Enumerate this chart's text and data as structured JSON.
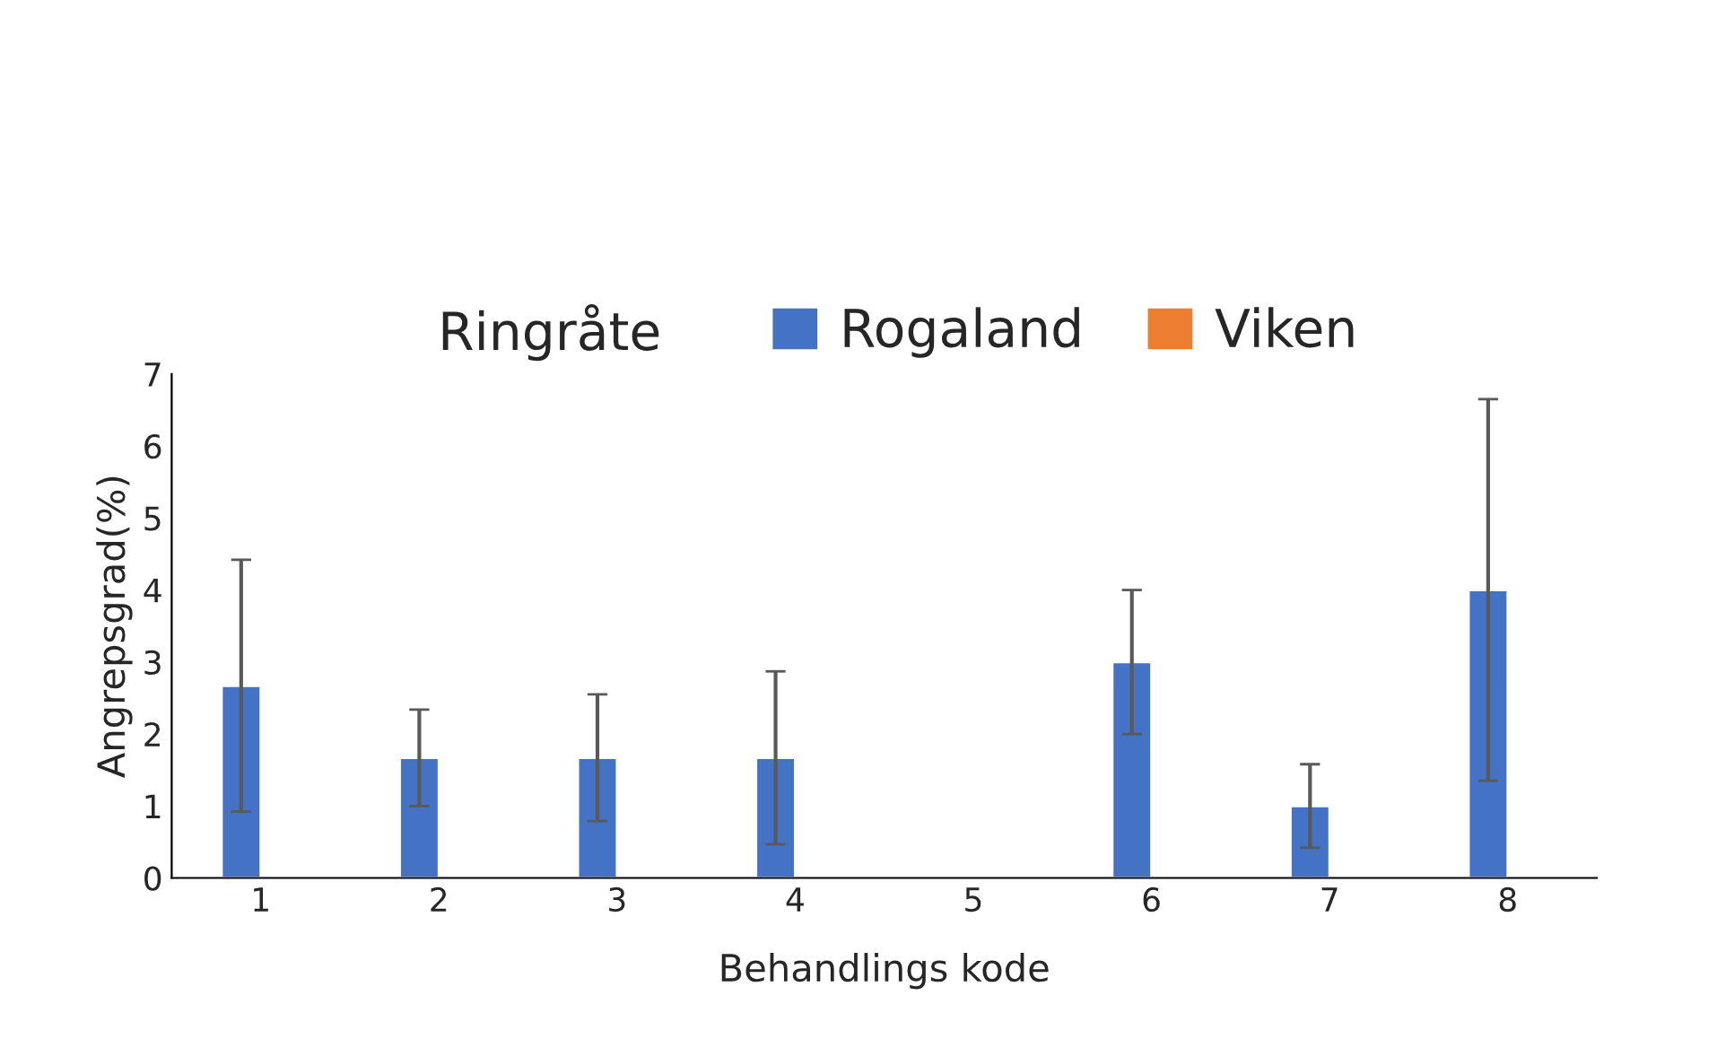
{
  "chart_data": {
    "type": "bar",
    "title": "Ringråte",
    "xlabel": "Behandlings kode",
    "ylabel": "Angrepsgrad(%)",
    "categories": [
      "1",
      "2",
      "3",
      "4",
      "5",
      "6",
      "7",
      "8"
    ],
    "series": [
      {
        "name": "Rogaland",
        "color": "#4472c4",
        "values": [
          2.67,
          1.67,
          1.67,
          1.67,
          null,
          3.0,
          1.0,
          4.0
        ],
        "errors": [
          1.75,
          0.67,
          0.88,
          1.2,
          null,
          1.0,
          0.58,
          2.65
        ]
      },
      {
        "name": "Viken",
        "color": "#ed7d31",
        "values": [
          null,
          null,
          null,
          null,
          null,
          null,
          null,
          null
        ]
      }
    ],
    "ylim": [
      0,
      7
    ],
    "yticks": [
      0,
      1,
      2,
      3,
      4,
      5,
      6,
      7
    ],
    "grid": false,
    "legend": "top"
  }
}
